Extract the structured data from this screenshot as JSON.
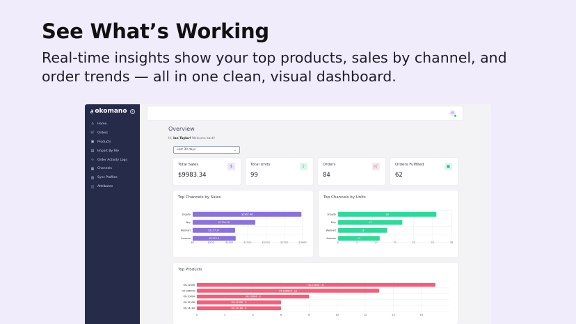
{
  "hero": {
    "title": "See What’s Working",
    "subtitle": "Real-time insights show your top products, sales by channel, and order trends — all in one clean, visual dashboard."
  },
  "sidebar": {
    "brand": "okomano",
    "items": [
      {
        "label": "Home",
        "icon": "home-icon",
        "glyph": "⌂"
      },
      {
        "label": "Orders",
        "icon": "cart-icon",
        "glyph": "🛒"
      },
      {
        "label": "Products",
        "icon": "box-icon",
        "glyph": "▣"
      },
      {
        "label": "Import By File",
        "icon": "file-icon",
        "glyph": "▤"
      },
      {
        "label": "Order Activity Logs",
        "icon": "activity-icon",
        "glyph": "∿"
      },
      {
        "label": "Channels",
        "icon": "grid-icon",
        "glyph": "▦"
      },
      {
        "label": "Sync Profiles",
        "icon": "sync-icon",
        "glyph": "▥"
      },
      {
        "label": "Attributes",
        "icon": "tag-icon",
        "glyph": "◫"
      }
    ]
  },
  "main": {
    "title": "Overview",
    "welcome_prefix": "Hi, ",
    "welcome_name": "Ian Taylor!",
    "welcome_suffix": " Welcome back!",
    "date_range": "Last 30 days"
  },
  "cards": [
    {
      "label": "Total Sales",
      "value": "$9983.34",
      "icon": "dollar-icon",
      "glyph": "$",
      "color": "#8a72d6",
      "bg": "#ece7fa"
    },
    {
      "label": "Total Units",
      "value": "99",
      "icon": "upload-box-icon",
      "glyph": "⇪",
      "color": "#1fb57f",
      "bg": "#dff6ec"
    },
    {
      "label": "Orders",
      "value": "84",
      "icon": "cart-icon",
      "glyph": "🛒",
      "color": "#e0526a",
      "bg": "#fde6ea"
    },
    {
      "label": "Orders Fulfilled",
      "value": "62",
      "icon": "box-check-icon",
      "glyph": "▣",
      "color": "#1fb57f",
      "bg": "#dff6ec"
    }
  ],
  "chart_data": [
    {
      "type": "bar",
      "orientation": "horizontal",
      "title": "Top Channels by Sales",
      "categories": [
        "Shopify",
        "Etsy",
        "Walmart",
        "Amazon"
      ],
      "values": [
        2967.48,
        1709.1,
        1157.27,
        1173.3
      ],
      "value_labels": [
        "$2967.48",
        "$1709.10",
        "$1157.27",
        "$1173.3"
      ],
      "xticks": [
        "$0",
        "$500",
        "$1000",
        "$1500",
        "$2000",
        "$2500",
        "$3000"
      ],
      "xlim": [
        0,
        3000
      ],
      "color": "#8a72d6",
      "grid": true
    },
    {
      "type": "bar",
      "orientation": "horizontal",
      "title": "Top Channels by Units",
      "categories": [
        "Shopify",
        "Etsy",
        "Walmart",
        "Amazon"
      ],
      "values": [
        26,
        17,
        13,
        11
      ],
      "value_labels": [
        "26",
        "17",
        "13",
        "11"
      ],
      "xticks": [
        "0",
        "5",
        "10",
        "15",
        "20",
        "25",
        "30"
      ],
      "xlim": [
        0,
        30
      ],
      "color": "#35d69a",
      "grid": true
    },
    {
      "type": "bar",
      "orientation": "horizontal",
      "title": "Top Products",
      "categories": [
        "OK-11848",
        "OK-166876",
        "OK-10694",
        "OK-12338",
        "OK-14184"
      ],
      "values": [
        17,
        13,
        8,
        6,
        6
      ],
      "value_labels": [
        "OK-11848 · 17",
        "OK-166876 · 13",
        "OK-10694 · 8",
        "OK-12338 · 6",
        "OK-14184 · 6"
      ],
      "xticks": [
        "0",
        "2",
        "4",
        "6",
        "8",
        "10",
        "12",
        "14",
        "16"
      ],
      "xlim": [
        0,
        18
      ],
      "color": "#f0607a",
      "grid": true
    }
  ]
}
